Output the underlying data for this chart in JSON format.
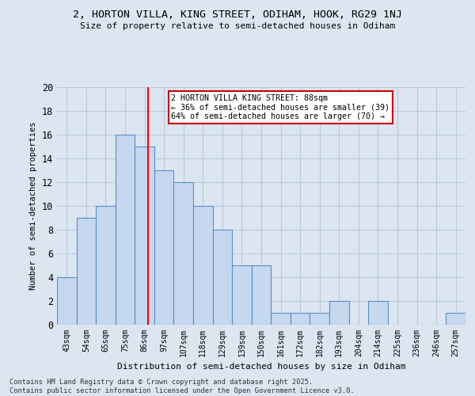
{
  "title1": "2, HORTON VILLA, KING STREET, ODIHAM, HOOK, RG29 1NJ",
  "title2": "Size of property relative to semi-detached houses in Odiham",
  "xlabel": "Distribution of semi-detached houses by size in Odiham",
  "ylabel": "Number of semi-detached properties",
  "bin_labels": [
    "43sqm",
    "54sqm",
    "65sqm",
    "75sqm",
    "86sqm",
    "97sqm",
    "107sqm",
    "118sqm",
    "129sqm",
    "139sqm",
    "150sqm",
    "161sqm",
    "172sqm",
    "182sqm",
    "193sqm",
    "204sqm",
    "214sqm",
    "225sqm",
    "236sqm",
    "246sqm",
    "257sqm"
  ],
  "bar_values": [
    4,
    9,
    10,
    16,
    15,
    13,
    12,
    10,
    8,
    5,
    5,
    1,
    1,
    1,
    2,
    0,
    2,
    0,
    0,
    0,
    1
  ],
  "bar_color": "#c5d8f0",
  "bar_edge_color": "#5b8ec4",
  "grid_color": "#b8c8dc",
  "background_color": "#dce6f1",
  "red_line_x": 4.18,
  "annotation_text": "2 HORTON VILLA KING STREET: 88sqm\n← 36% of semi-detached houses are smaller (39)\n64% of semi-detached houses are larger (70) →",
  "annotation_box_color": "#ffffff",
  "annotation_box_edge": "#cc0000",
  "footer": "Contains HM Land Registry data © Crown copyright and database right 2025.\nContains public sector information licensed under the Open Government Licence v3.0.",
  "ylim": [
    0,
    20
  ],
  "yticks": [
    0,
    2,
    4,
    6,
    8,
    10,
    12,
    14,
    16,
    18,
    20
  ]
}
